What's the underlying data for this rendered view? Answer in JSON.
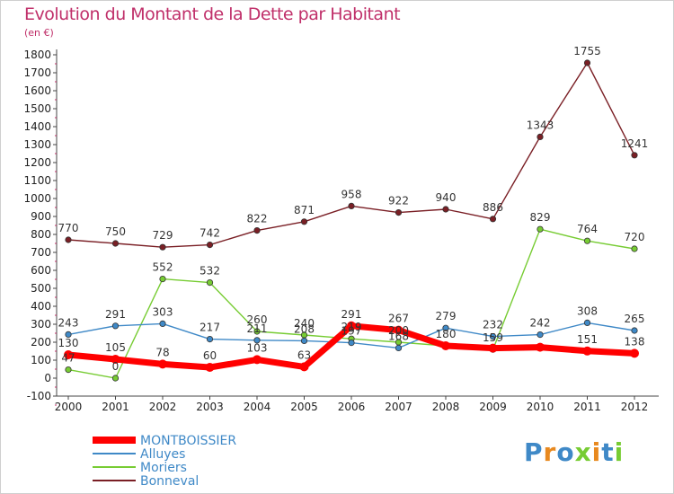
{
  "title": "Evolution du Montant de la Dette par Habitant",
  "unit": "(en €)",
  "logo": "Proxiti",
  "chart_data": {
    "type": "line",
    "categories": [
      "2000",
      "2001",
      "2002",
      "2003",
      "2004",
      "2005",
      "2006",
      "2007",
      "2008",
      "2009",
      "2010",
      "2011",
      "2012"
    ],
    "ylim": [
      -100,
      1800
    ],
    "yticks": [
      -100,
      0,
      100,
      200,
      300,
      400,
      500,
      600,
      700,
      800,
      900,
      1000,
      1100,
      1200,
      1300,
      1400,
      1500,
      1600,
      1700,
      1800
    ],
    "grid": false,
    "legend_position": "bottom-left",
    "series": [
      {
        "name": "MONTBOISSIER",
        "color": "#ff0000",
        "values": [
          130,
          105,
          78,
          60,
          103,
          63,
          291,
          267,
          180,
          167,
          172,
          151,
          138
        ],
        "labels": [
          "130",
          "105",
          "78",
          "60",
          "103",
          "63",
          "291",
          "267",
          "",
          "",
          "",
          "151",
          "138"
        ]
      },
      {
        "name": "Alluyes",
        "color": "#3f89c7",
        "values": [
          243,
          291,
          303,
          217,
          211,
          208,
          197,
          168,
          279,
          232,
          242,
          308,
          265
        ],
        "labels": [
          "243",
          "291",
          "303",
          "217",
          "211",
          "208",
          "197",
          "168",
          "279",
          "232",
          "242",
          "308",
          "265"
        ]
      },
      {
        "name": "Moriers",
        "color": "#77cc33",
        "values": [
          47,
          0,
          552,
          532,
          260,
          240,
          219,
          200,
          180,
          159,
          829,
          764,
          720
        ],
        "labels": [
          "47",
          "0",
          "552",
          "532",
          "260",
          "240",
          "219",
          "200",
          "180",
          "159",
          "829",
          "764",
          "720"
        ]
      },
      {
        "name": "Bonneval",
        "color": "#7a1f25",
        "values": [
          770,
          750,
          729,
          742,
          822,
          871,
          958,
          922,
          940,
          886,
          1343,
          1755,
          1241
        ],
        "labels": [
          "770",
          "750",
          "729",
          "742",
          "822",
          "871",
          "958",
          "922",
          "940",
          "886",
          "1343",
          "1755",
          "1241"
        ]
      }
    ]
  }
}
